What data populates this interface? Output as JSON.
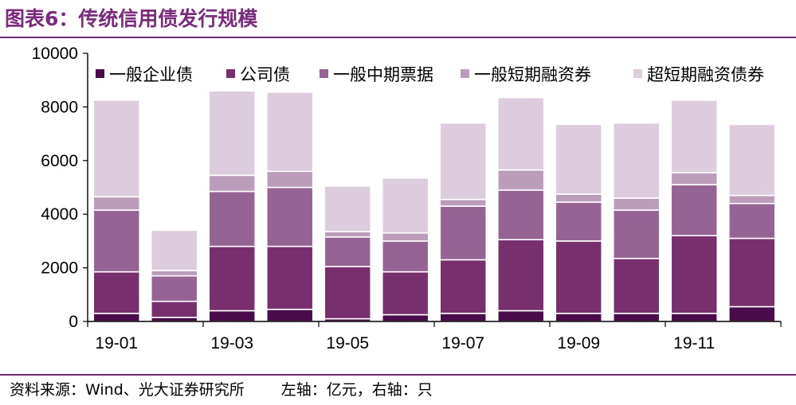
{
  "header": {
    "title": "图表6：传统信用债发行规模"
  },
  "footer": {
    "source": "资料来源：Wind、光大证券研究所",
    "axis_note": "左轴：亿元，右轴：只"
  },
  "colors": {
    "accent": "#7b2b7b",
    "series": [
      "#4a0b4a",
      "#782f6e",
      "#966494",
      "#bb9dbb",
      "#dcccde"
    ]
  },
  "chart_data": {
    "type": "bar",
    "stacked": true,
    "categories": [
      "19-01",
      "19-02",
      "19-03",
      "19-04",
      "19-05",
      "19-06",
      "19-07",
      "19-08",
      "19-09",
      "19-10",
      "19-11",
      "19-12"
    ],
    "tick_labels": [
      "19-01",
      "19-03",
      "19-05",
      "19-07",
      "19-09",
      "19-11"
    ],
    "series": [
      {
        "name": "一般企业债",
        "values": [
          300,
          150,
          400,
          450,
          100,
          250,
          300,
          400,
          300,
          300,
          300,
          550
        ]
      },
      {
        "name": "公司债",
        "values": [
          1550,
          600,
          2400,
          2350,
          1950,
          1600,
          2000,
          2650,
          2700,
          2050,
          2900,
          2550
        ]
      },
      {
        "name": "一般中期票据",
        "values": [
          2300,
          950,
          2050,
          2200,
          1100,
          1150,
          2000,
          1850,
          1450,
          1800,
          1900,
          1300
        ]
      },
      {
        "name": "一般短期融资券",
        "values": [
          500,
          200,
          600,
          600,
          200,
          300,
          250,
          750,
          300,
          450,
          450,
          300
        ]
      },
      {
        "name": "超短期融资债券",
        "values": [
          3600,
          1500,
          3150,
          2950,
          1700,
          2050,
          2850,
          2700,
          2600,
          2800,
          2700,
          2650
        ]
      }
    ],
    "ylim": [
      0,
      10000
    ],
    "yticks": [
      0,
      2000,
      4000,
      6000,
      8000,
      10000
    ],
    "grid": false,
    "legend_position": "top"
  }
}
